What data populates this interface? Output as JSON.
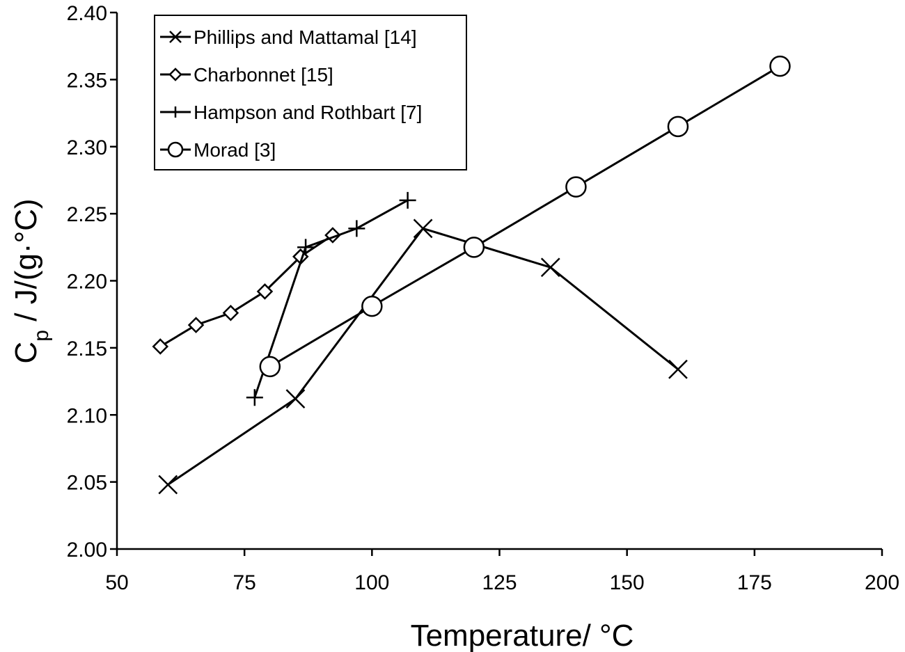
{
  "chart_data": {
    "type": "line",
    "xlabel": "Temperature/ °C",
    "ylabel_main": "C",
    "ylabel_sub": "p",
    "ylabel_rest": " / J/(g·°C)",
    "xlim": [
      50,
      200
    ],
    "ylim": [
      2.0,
      2.4
    ],
    "x_ticks": [
      50,
      75,
      100,
      125,
      150,
      175,
      200
    ],
    "x_tick_labels": [
      "50",
      "75",
      "100",
      "125",
      "150",
      "175",
      "200"
    ],
    "y_ticks": [
      2.0,
      2.05,
      2.1,
      2.15,
      2.2,
      2.25,
      2.3,
      2.35,
      2.4
    ],
    "y_tick_labels": [
      "2.00",
      "2.05",
      "2.10",
      "2.15",
      "2.20",
      "2.25",
      "2.30",
      "2.35",
      "2.40"
    ],
    "grid": false,
    "legend_position": "top-left",
    "series": [
      {
        "name": "Phillips and Mattamal [14]",
        "marker": "x",
        "x": [
          60,
          85,
          110,
          135,
          160
        ],
        "y": [
          2.048,
          2.112,
          2.239,
          2.21,
          2.134
        ]
      },
      {
        "name": "Charbonnet [15]",
        "marker": "diamond",
        "x": [
          58.5,
          65.5,
          72.3,
          79,
          86,
          92.3
        ],
        "y": [
          2.151,
          2.167,
          2.176,
          2.192,
          2.218,
          2.234
        ]
      },
      {
        "name": "Hampson and Rothbart [7]",
        "marker": "plus",
        "x": [
          77,
          87,
          97,
          107
        ],
        "y": [
          2.113,
          2.225,
          2.239,
          2.26
        ]
      },
      {
        "name": "Morad [3]",
        "marker": "circle",
        "x": [
          80,
          100,
          120,
          140,
          160,
          180
        ],
        "y": [
          2.136,
          2.181,
          2.225,
          2.27,
          2.315,
          2.36
        ]
      }
    ]
  }
}
